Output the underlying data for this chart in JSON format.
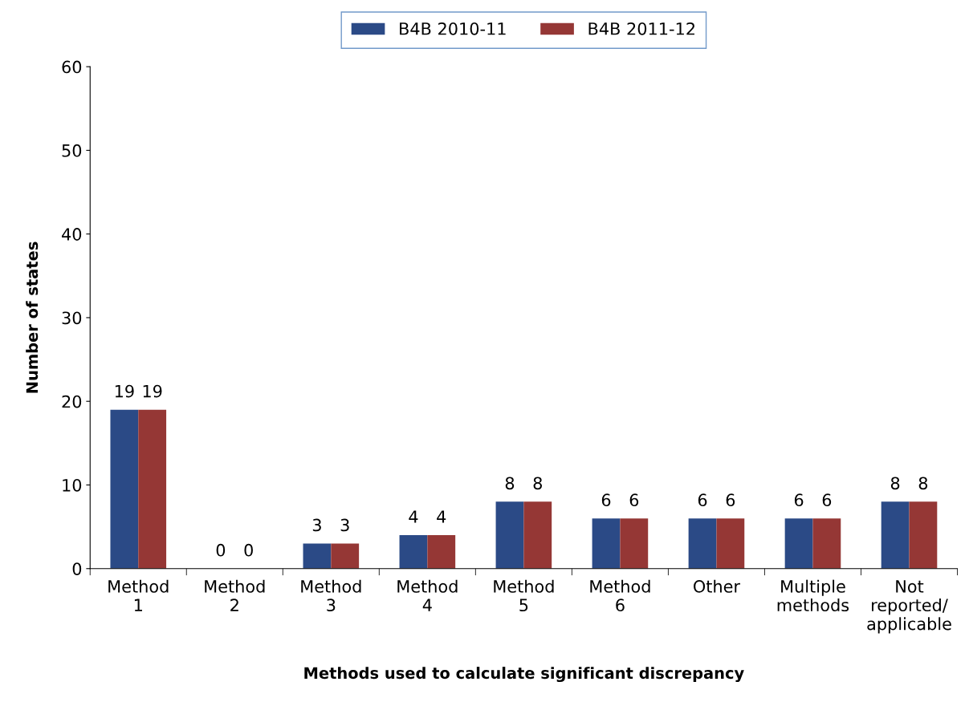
{
  "chart_data": {
    "type": "bar",
    "xlabel": "Methods used to calculate significant discrepancy",
    "ylabel": "Number of states",
    "categories": [
      "Method\n1",
      "Method\n2",
      "Method\n3",
      "Method\n4",
      "Method\n5",
      "Method\n6",
      "Other",
      "Multiple\nmethods",
      "Not\nreported/\napplicable"
    ],
    "series": [
      {
        "name": "B4B 2010-11",
        "color": "#2b4a86",
        "values": [
          19,
          0,
          3,
          4,
          8,
          6,
          6,
          6,
          8
        ]
      },
      {
        "name": "B4B 2011-12",
        "color": "#953735",
        "values": [
          19,
          0,
          3,
          4,
          8,
          6,
          6,
          6,
          8
        ]
      }
    ],
    "ylim": [
      0,
      60
    ],
    "yticks": [
      0,
      10,
      20,
      30,
      40,
      50,
      60
    ],
    "data_labels": true,
    "legend": "top",
    "grid": false
  }
}
